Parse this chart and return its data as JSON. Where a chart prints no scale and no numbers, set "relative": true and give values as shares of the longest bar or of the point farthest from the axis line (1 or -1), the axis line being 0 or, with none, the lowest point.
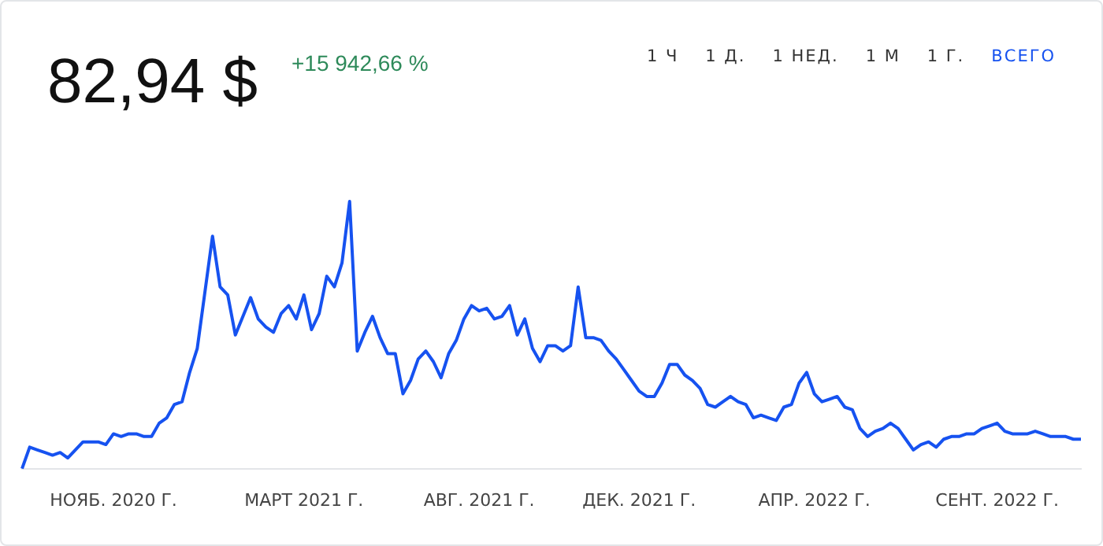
{
  "chart_data": {
    "type": "line",
    "title": "82,94 $",
    "subtitle": "+15 942,66 %",
    "annotations": [
      "1 Ч",
      "1 Д.",
      "1 НЕД.",
      "1 М",
      "1 Г.",
      "ВСЕГО"
    ],
    "relative": true,
    "color": "#1652f0",
    "categories": [
      null,
      null,
      null,
      null,
      null,
      null,
      null,
      null,
      null,
      null,
      null,
      null,
      "НОЯБ. 2020 Г.",
      null,
      null,
      null,
      null,
      null,
      null,
      null,
      null,
      null,
      null,
      null,
      null,
      null,
      null,
      null,
      null,
      null,
      null,
      null,
      null,
      null,
      null,
      null,
      null,
      "МАРТ 2021 Г.",
      null,
      null,
      null,
      null,
      null,
      null,
      null,
      null,
      null,
      null,
      null,
      null,
      null,
      null,
      null,
      null,
      null,
      null,
      null,
      null,
      null,
      null,
      "АВГ. 2021 Г.",
      null,
      null,
      null,
      null,
      null,
      null,
      null,
      null,
      null,
      null,
      null,
      null,
      null,
      null,
      null,
      null,
      null,
      null,
      null,
      null,
      "ДЕК. 2021 Г.",
      null,
      null,
      null,
      null,
      null,
      null,
      null,
      null,
      null,
      null,
      null,
      null,
      null,
      null,
      null,
      null,
      null,
      null,
      null,
      null,
      null,
      null,
      "АПР. 2022 Г.",
      null,
      null,
      null,
      null,
      null,
      null,
      null,
      null,
      null,
      null,
      null,
      null,
      null,
      null,
      null,
      null,
      null,
      null,
      null,
      null,
      null,
      null,
      null,
      "СЕНТ. 2022 Г.",
      null,
      null,
      null,
      null,
      null,
      null,
      null,
      null,
      null,
      null,
      null
    ],
    "values": [
      0,
      0.08,
      0.07,
      0.06,
      0.05,
      0.06,
      0.04,
      0.07,
      0.1,
      0.1,
      0.1,
      0.09,
      0.13,
      0.12,
      0.13,
      0.13,
      0.12,
      0.12,
      0.17,
      0.19,
      0.24,
      0.25,
      0.36,
      0.45,
      0.66,
      0.87,
      0.68,
      0.65,
      0.5,
      0.57,
      0.64,
      0.56,
      0.53,
      0.51,
      0.58,
      0.61,
      0.56,
      0.65,
      0.52,
      0.58,
      0.72,
      0.68,
      0.77,
      1,
      0.44,
      0.51,
      0.57,
      0.49,
      0.43,
      0.43,
      0.28,
      0.33,
      0.41,
      0.44,
      0.4,
      0.34,
      0.43,
      0.48,
      0.56,
      0.61,
      0.59,
      0.6,
      0.56,
      0.57,
      0.61,
      0.5,
      0.56,
      0.45,
      0.4,
      0.46,
      0.46,
      0.44,
      0.46,
      0.68,
      0.49,
      0.49,
      0.48,
      0.44,
      0.41,
      0.37,
      0.33,
      0.29,
      0.27,
      0.27,
      0.32,
      0.39,
      0.39,
      0.35,
      0.33,
      0.3,
      0.24,
      0.23,
      0.25,
      0.27,
      0.25,
      0.24,
      0.19,
      0.2,
      0.19,
      0.18,
      0.23,
      0.24,
      0.32,
      0.36,
      0.28,
      0.25,
      0.26,
      0.27,
      0.23,
      0.22,
      0.15,
      0.12,
      0.14,
      0.15,
      0.17,
      0.15,
      0.11,
      0.07,
      0.09,
      0.1,
      0.08,
      0.11,
      0.12,
      0.12,
      0.13,
      0.13,
      0.15,
      0.16,
      0.17,
      0.14,
      0.13,
      0.13,
      0.13,
      0.14,
      0.13,
      0.12,
      0.12,
      0.12,
      0.11,
      0.11
    ]
  }
}
